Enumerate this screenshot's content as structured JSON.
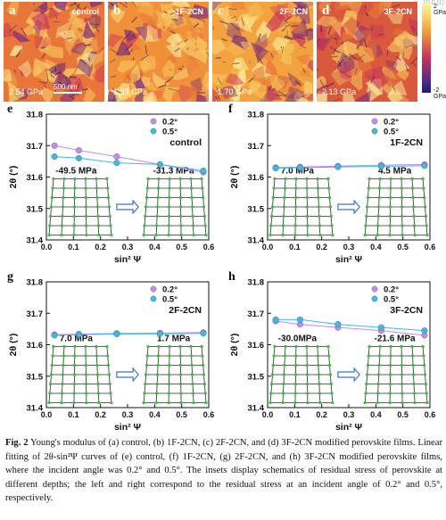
{
  "watermark": "10.0 (1)",
  "afm_panels": [
    {
      "label": "a",
      "title": "control",
      "modulus": "2.54 GPa",
      "scalebar": "500 nm",
      "tone": "#e8763a"
    },
    {
      "label": "b",
      "title": "1F-2CN",
      "modulus": "1.93 GPa",
      "tone": "#f0913a"
    },
    {
      "label": "c",
      "title": "2F-2CN",
      "modulus": "1.70 GPa",
      "tone": "#f2a23e"
    },
    {
      "label": "d",
      "title": "3F-2CN",
      "modulus": "2.13 GPa",
      "tone": "#d8593c"
    }
  ],
  "colorbar": {
    "top": "2 GPa",
    "bottom": "-2 GPa"
  },
  "legend": {
    "s1": "0.2°",
    "s2": "0.5°"
  },
  "colors": {
    "s1": "#c38af2",
    "s2": "#3db9e6",
    "lattice_line": "#2b2b2b",
    "lattice_node": "#3fbf3f",
    "arrow": "#3a77c4"
  },
  "chart_data": [
    {
      "type": "line",
      "panel": "e",
      "title": "control",
      "xlabel": "sin² Ψ",
      "ylabel": "2θ (°)",
      "xlim": [
        0,
        0.6
      ],
      "ylim": [
        31.4,
        31.8
      ],
      "xticks": [
        "0.0",
        "0.1",
        "0.2",
        "0.3",
        "0.4",
        "0.5",
        "0.6"
      ],
      "yticks": [
        "31.4",
        "31.5",
        "31.6",
        "31.7",
        "31.8"
      ],
      "stress_left": "-49.5 MPa",
      "stress_right": "-31.3 MPa",
      "series": [
        {
          "name": "0.2°",
          "x": [
            0.03,
            0.12,
            0.26,
            0.42,
            0.58
          ],
          "y": [
            31.7,
            31.685,
            31.665,
            31.64,
            31.615
          ]
        },
        {
          "name": "0.5°",
          "x": [
            0.03,
            0.12,
            0.26,
            0.42,
            0.58
          ],
          "y": [
            31.665,
            31.66,
            31.645,
            31.64,
            31.62
          ]
        }
      ]
    },
    {
      "type": "line",
      "panel": "f",
      "title": "1F-2CN",
      "xlabel": "sin² Ψ",
      "ylabel": "2θ (°)",
      "xlim": [
        0,
        0.6
      ],
      "ylim": [
        31.4,
        31.8
      ],
      "xticks": [
        "0.0",
        "0.1",
        "0.2",
        "0.3",
        "0.4",
        "0.5",
        "0.6"
      ],
      "yticks": [
        "31.4",
        "31.5",
        "31.6",
        "31.7",
        "31.8"
      ],
      "stress_left": "7.0 MPa",
      "stress_right": "4.5 MPa",
      "series": [
        {
          "name": "0.2°",
          "x": [
            0.03,
            0.12,
            0.26,
            0.42,
            0.58
          ],
          "y": [
            31.63,
            31.632,
            31.635,
            31.638,
            31.64
          ]
        },
        {
          "name": "0.5°",
          "x": [
            0.03,
            0.12,
            0.26,
            0.42,
            0.58
          ],
          "y": [
            31.628,
            31.63,
            31.632,
            31.634,
            31.636
          ]
        }
      ]
    },
    {
      "type": "line",
      "panel": "g",
      "title": "2F-2CN",
      "xlabel": "sin² Ψ",
      "ylabel": "2θ (°)",
      "xlim": [
        0,
        0.6
      ],
      "ylim": [
        31.4,
        31.8
      ],
      "xticks": [
        "0.0",
        "0.1",
        "0.2",
        "0.3",
        "0.4",
        "0.5",
        "0.6"
      ],
      "yticks": [
        "31.4",
        "31.5",
        "31.6",
        "31.7",
        "31.8"
      ],
      "stress_left": "7.0 MPa",
      "stress_right": "1.7 MPa",
      "series": [
        {
          "name": "0.2°",
          "x": [
            0.03,
            0.12,
            0.26,
            0.42,
            0.58
          ],
          "y": [
            31.632,
            31.634,
            31.636,
            31.637,
            31.639
          ]
        },
        {
          "name": "0.5°",
          "x": [
            0.03,
            0.12,
            0.26,
            0.42,
            0.58
          ],
          "y": [
            31.63,
            31.632,
            31.634,
            31.635,
            31.636
          ]
        }
      ]
    },
    {
      "type": "line",
      "panel": "h",
      "title": "3F-2CN",
      "xlabel": "sin² Ψ",
      "ylabel": "2θ (°)",
      "xlim": [
        0,
        0.6
      ],
      "ylim": [
        31.4,
        31.8
      ],
      "xticks": [
        "0.0",
        "0.1",
        "0.2",
        "0.3",
        "0.4",
        "0.5",
        "0.6"
      ],
      "yticks": [
        "31.4",
        "31.5",
        "31.6",
        "31.7",
        "31.8"
      ],
      "stress_left": "-30.0MPa",
      "stress_right": "-21.6 MPa",
      "series": [
        {
          "name": "0.2°",
          "x": [
            0.03,
            0.12,
            0.26,
            0.42,
            0.58
          ],
          "y": [
            31.675,
            31.665,
            31.655,
            31.645,
            31.63
          ]
        },
        {
          "name": "0.5°",
          "x": [
            0.03,
            0.12,
            0.26,
            0.42,
            0.58
          ],
          "y": [
            31.68,
            31.68,
            31.665,
            31.655,
            31.645
          ]
        }
      ]
    }
  ],
  "caption": {
    "fig_label": "Fig. 2",
    "text": " Young's modulus of (a) control, (b) 1F-2CN, (c) 2F-2CN, and (d) 3F-2CN modified perovskite films. Linear fitting of 2θ-sin²Ψ curves of (e) control, (f) 1F-2CN, (g) 2F-2CN, and (h) 3F-2CN modified perovskite films, where the incident angle was 0.2° and 0.5°. The insets display schematics of residual stress of perovskite at different depths; the left and right correspond to the residual stress at an incident angle of 0.2° and 0.5°, respectively."
  }
}
